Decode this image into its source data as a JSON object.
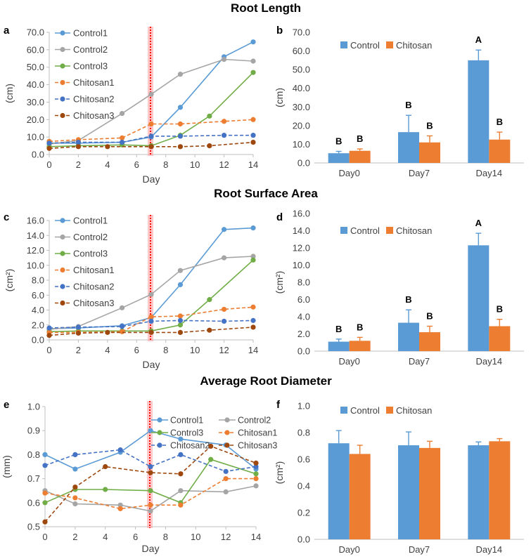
{
  "section_titles": [
    "Root Length",
    "Root Surface Area",
    "Average Root Diameter"
  ],
  "panel_letters": [
    "a",
    "b",
    "c",
    "d",
    "e",
    "f"
  ],
  "colors": {
    "control1": "#5B9BD5",
    "control2": "#A5A5A5",
    "control3": "#70AD47",
    "chitosan1": "#ED7D31",
    "chitosan2": "#4472C4",
    "chitosan3": "#9E480E",
    "bar_control": "#5B9BD5",
    "bar_chitosan": "#ED7D31",
    "marker_line": "#FF0000"
  },
  "chart_data": [
    {
      "id": "a",
      "type": "line",
      "title": "Root Length",
      "xlabel": "Day",
      "ylabel": "(cm)",
      "xlim": [
        0,
        14
      ],
      "xticks": [
        0,
        2,
        4,
        6,
        8,
        10,
        12,
        14
      ],
      "ylim": [
        0,
        70
      ],
      "yticks": [
        "0.0",
        "10.0",
        "20.0",
        "30.0",
        "40.0",
        "50.0",
        "60.0",
        "70.0"
      ],
      "treatment_day": 7,
      "legend_position": "top-left, vertical",
      "series": [
        {
          "name": "Control1",
          "dashed": false,
          "x": [
            0,
            2,
            5,
            7,
            9,
            12,
            14
          ],
          "values": [
            6.5,
            6.5,
            7.0,
            10.0,
            27.0,
            56.0,
            64.5
          ]
        },
        {
          "name": "Control2",
          "dashed": false,
          "x": [
            0,
            2,
            5,
            7,
            9,
            12,
            14
          ],
          "values": [
            6.0,
            8.0,
            23.5,
            34.5,
            46.0,
            54.5,
            53.5
          ]
        },
        {
          "name": "Control3",
          "dashed": false,
          "x": [
            0,
            2,
            5,
            7,
            9,
            11,
            14
          ],
          "values": [
            4.5,
            5.0,
            5.5,
            5.0,
            11.0,
            22.0,
            47.0
          ]
        },
        {
          "name": "Chitosan1",
          "dashed": true,
          "x": [
            0,
            2,
            5,
            7,
            9,
            12,
            14
          ],
          "values": [
            7.5,
            8.5,
            9.5,
            17.5,
            17.5,
            19.0,
            20.0
          ]
        },
        {
          "name": "Chitosan2",
          "dashed": true,
          "x": [
            0,
            2,
            5,
            7,
            9,
            12,
            14
          ],
          "values": [
            6.5,
            7.0,
            7.0,
            10.5,
            10.5,
            11.0,
            11.0
          ]
        },
        {
          "name": "Chitosan3",
          "dashed": true,
          "x": [
            0,
            2,
            4,
            7,
            9,
            11,
            14
          ],
          "values": [
            3.5,
            4.5,
            4.5,
            4.5,
            4.5,
            5.0,
            7.0
          ]
        }
      ]
    },
    {
      "id": "b",
      "type": "bar",
      "title": "Root Length",
      "xlabel": "",
      "ylabel": "(cm)",
      "categories": [
        "Day0",
        "Day7",
        "Day14"
      ],
      "ylim": [
        0,
        70
      ],
      "yticks": [
        "0.0",
        "10.0",
        "20.0",
        "30.0",
        "40.0",
        "50.0",
        "60.0",
        "70.0"
      ],
      "legend_position": "top-left, horizontal",
      "series": [
        {
          "name": "Control",
          "values": [
            5.2,
            16.5,
            55.0
          ],
          "errors": [
            1.0,
            9.0,
            5.5
          ],
          "letters": [
            "B",
            "B",
            "A"
          ]
        },
        {
          "name": "Chitosan",
          "values": [
            6.5,
            11.0,
            12.5
          ],
          "errors": [
            1.0,
            3.5,
            4.0
          ],
          "letters": [
            "B",
            "B",
            "B"
          ]
        }
      ]
    },
    {
      "id": "c",
      "type": "line",
      "title": "Root Surface Area",
      "xlabel": "Day",
      "ylabel": "(cm²)",
      "xlim": [
        0,
        14
      ],
      "xticks": [
        0,
        2,
        4,
        6,
        8,
        10,
        12,
        14
      ],
      "ylim": [
        0,
        16
      ],
      "yticks": [
        "0.0",
        "2.0",
        "4.0",
        "6.0",
        "8.0",
        "10.0",
        "12.0",
        "14.0",
        "16.0"
      ],
      "treatment_day": 7,
      "legend_position": "top-left, vertical",
      "series": [
        {
          "name": "Control1",
          "dashed": false,
          "x": [
            0,
            2,
            5,
            7,
            9,
            12,
            14
          ],
          "values": [
            1.5,
            1.6,
            1.9,
            3.0,
            7.4,
            14.8,
            15.0
          ]
        },
        {
          "name": "Control2",
          "dashed": false,
          "x": [
            0,
            2,
            5,
            7,
            9,
            12,
            14
          ],
          "values": [
            1.4,
            1.8,
            4.3,
            6.1,
            9.3,
            11.0,
            11.2
          ]
        },
        {
          "name": "Control3",
          "dashed": false,
          "x": [
            0,
            2,
            5,
            7,
            9,
            11,
            14
          ],
          "values": [
            1.1,
            1.2,
            1.2,
            1.2,
            2.0,
            5.4,
            10.7
          ]
        },
        {
          "name": "Chitosan1",
          "dashed": true,
          "x": [
            0,
            2,
            5,
            7,
            9,
            12,
            14
          ],
          "values": [
            1.0,
            1.0,
            1.1,
            3.1,
            3.2,
            4.1,
            4.4
          ]
        },
        {
          "name": "Chitosan2",
          "dashed": true,
          "x": [
            0,
            2,
            5,
            7,
            9,
            12,
            14
          ],
          "values": [
            1.6,
            1.7,
            1.8,
            2.5,
            2.6,
            2.5,
            2.6
          ]
        },
        {
          "name": "Chitosan3",
          "dashed": true,
          "x": [
            0,
            2,
            4,
            7,
            9,
            11,
            14
          ],
          "values": [
            0.6,
            0.9,
            1.0,
            1.0,
            1.0,
            1.3,
            1.7
          ]
        }
      ]
    },
    {
      "id": "d",
      "type": "bar",
      "title": "Root Surface Area",
      "xlabel": "",
      "ylabel": "(cm²)",
      "categories": [
        "Day0",
        "Day7",
        "Day14"
      ],
      "ylim": [
        0,
        16
      ],
      "yticks": [
        "0.0",
        "2.0",
        "4.0",
        "6.0",
        "8.0",
        "10.0",
        "12.0",
        "14.0",
        "16.0"
      ],
      "legend_position": "top-left, horizontal",
      "series": [
        {
          "name": "Control",
          "values": [
            1.1,
            3.3,
            12.3
          ],
          "errors": [
            0.3,
            1.5,
            1.4
          ],
          "letters": [
            "B",
            "B",
            "A"
          ]
        },
        {
          "name": "Chitosan",
          "values": [
            1.2,
            2.2,
            2.9
          ],
          "errors": [
            0.4,
            0.7,
            0.8
          ],
          "letters": [
            "B",
            "B",
            "B"
          ]
        }
      ]
    },
    {
      "id": "e",
      "type": "line",
      "title": "Average Root Diameter",
      "xlabel": "Day",
      "ylabel": "(mm)",
      "xlim": [
        0,
        14
      ],
      "xticks": [
        0,
        2,
        4,
        6,
        8,
        10,
        12,
        14
      ],
      "ylim": [
        0.5,
        1.0
      ],
      "yticks": [
        "0.5",
        "0.6",
        "0.7",
        "0.8",
        "0.9",
        "1.0"
      ],
      "treatment_day": 7,
      "legend_position": "top, three columns",
      "series": [
        {
          "name": "Control1",
          "dashed": false,
          "x": [
            0,
            2,
            5,
            7,
            9,
            12,
            14
          ],
          "values": [
            0.8,
            0.74,
            0.81,
            0.9,
            0.865,
            0.84,
            0.74
          ]
        },
        {
          "name": "Control2",
          "dashed": false,
          "x": [
            0,
            2,
            5,
            7,
            9,
            12,
            14
          ],
          "values": [
            0.65,
            0.595,
            0.59,
            0.565,
            0.65,
            0.645,
            0.67
          ]
        },
        {
          "name": "Control3",
          "dashed": false,
          "x": [
            0,
            2,
            4,
            7,
            9,
            11,
            14
          ],
          "values": [
            0.6,
            0.655,
            0.655,
            0.65,
            0.6,
            0.78,
            0.72
          ]
        },
        {
          "name": "Chitosan1",
          "dashed": true,
          "x": [
            0,
            2,
            5,
            7,
            9,
            12,
            14
          ],
          "values": [
            0.64,
            0.62,
            0.575,
            0.59,
            0.59,
            0.7,
            0.7
          ]
        },
        {
          "name": "Chitosan2",
          "dashed": true,
          "x": [
            0,
            2,
            5,
            7,
            9,
            12,
            14
          ],
          "values": [
            0.755,
            0.8,
            0.82,
            0.75,
            0.8,
            0.73,
            0.75
          ]
        },
        {
          "name": "Chitosan3",
          "dashed": true,
          "x": [
            0,
            2,
            4,
            7,
            9,
            11,
            14
          ],
          "values": [
            0.52,
            0.665,
            0.75,
            0.725,
            0.72,
            0.835,
            0.765
          ]
        }
      ]
    },
    {
      "id": "f",
      "type": "bar",
      "title": "Average Root Diameter",
      "xlabel": "",
      "ylabel": "(cm²)",
      "categories": [
        "Day0",
        "Day7",
        "Day14"
      ],
      "ylim": [
        0,
        1.0
      ],
      "yticks": [
        "0.0",
        "0.2",
        "0.4",
        "0.6",
        "0.8",
        "1.0"
      ],
      "legend_position": "top-left, horizontal",
      "series": [
        {
          "name": "Control",
          "values": [
            0.72,
            0.705,
            0.705
          ],
          "errors": [
            0.095,
            0.1,
            0.025
          ],
          "letters": []
        },
        {
          "name": "Chitosan",
          "values": [
            0.64,
            0.685,
            0.735
          ],
          "errors": [
            0.065,
            0.05,
            0.02
          ],
          "letters": []
        }
      ]
    }
  ]
}
